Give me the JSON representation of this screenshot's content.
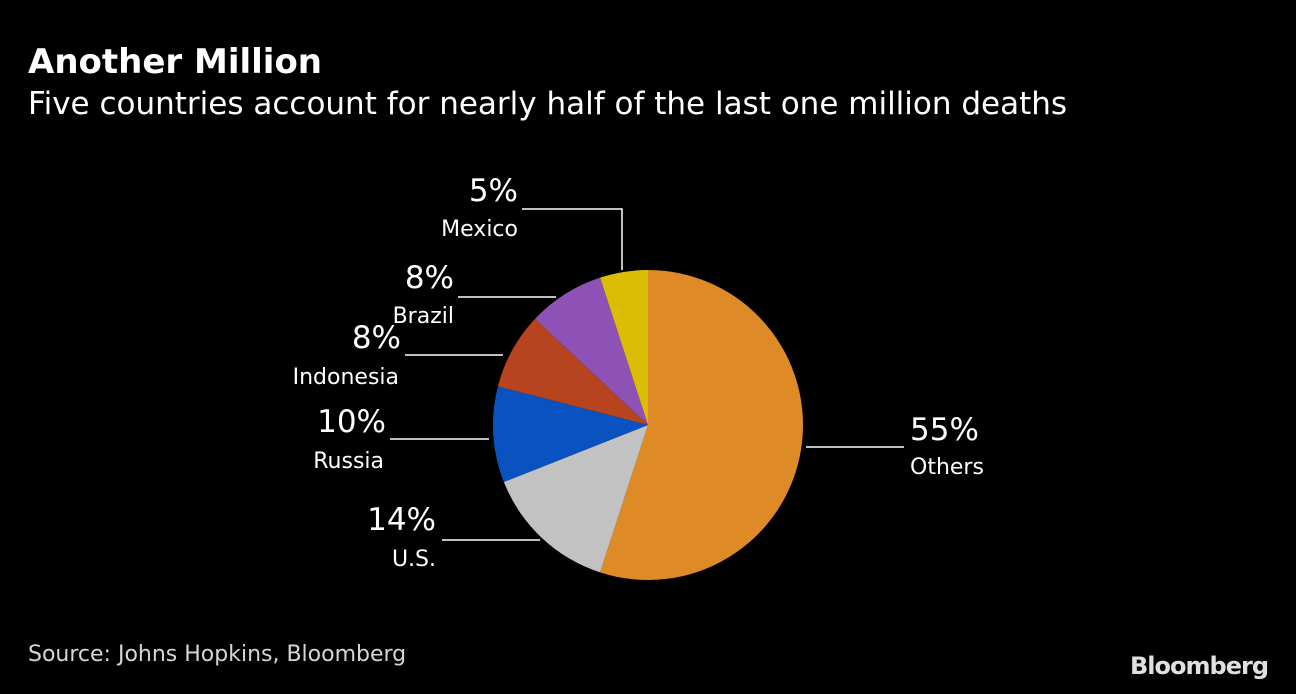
{
  "chart_data": {
    "type": "pie",
    "title": "Another Million",
    "subtitle": "Five countries account for nearly half of the last one million deaths",
    "slices": [
      {
        "label": "Others",
        "value": 55,
        "display": "55%",
        "color": "#de8a26"
      },
      {
        "label": "U.S.",
        "value": 14,
        "display": "14%",
        "color": "#c2c2c2"
      },
      {
        "label": "Russia",
        "value": 10,
        "display": "10%",
        "color": "#0b52c1"
      },
      {
        "label": "Indonesia",
        "value": 8,
        "display": "8%",
        "color": "#b5441f"
      },
      {
        "label": "Brazil",
        "value": 8,
        "display": "8%",
        "color": "#8e52b7"
      },
      {
        "label": "Mexico",
        "value": 5,
        "display": "5%",
        "color": "#dbbd06"
      }
    ],
    "start": "top",
    "direction": "clockwise"
  },
  "footer": {
    "source": "Source: Johns Hopkins, Bloomberg",
    "brand": "Bloomberg"
  }
}
